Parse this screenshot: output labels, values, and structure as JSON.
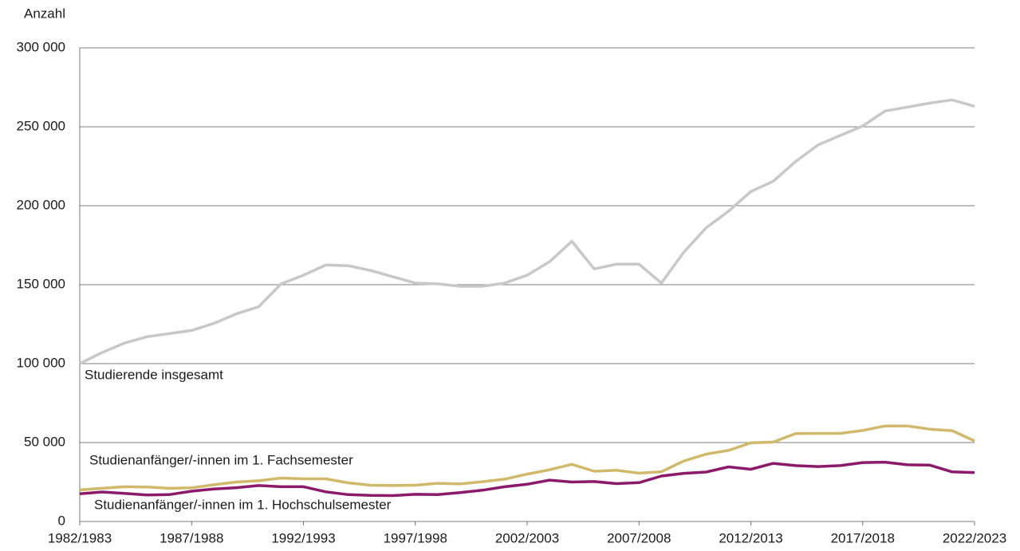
{
  "chart_data": {
    "type": "line",
    "y_label": "Anzahl",
    "categories": [
      "1982/1983",
      null,
      null,
      null,
      null,
      "1987/1988",
      null,
      null,
      null,
      null,
      "1992/1993",
      null,
      null,
      null,
      null,
      "1997/1998",
      null,
      null,
      null,
      null,
      "2002/2003",
      null,
      null,
      null,
      null,
      "2007/2008",
      null,
      null,
      null,
      null,
      "2012/2013",
      null,
      null,
      null,
      null,
      "2017/2018",
      null,
      null,
      null,
      null,
      "2022/2023"
    ],
    "series": [
      {
        "name": "Studierende insgesamt",
        "color": "#c8c8c8",
        "values": [
          100000,
          107000,
          113000,
          117000,
          119000,
          121000,
          125500,
          131500,
          136000,
          150500,
          156000,
          162500,
          162000,
          159000,
          155000,
          151000,
          150500,
          149000,
          149000,
          151000,
          156000,
          164500,
          177500,
          160000,
          163000,
          163000,
          151000,
          170500,
          186000,
          196500,
          209000,
          215500,
          228000,
          238500,
          244500,
          250500,
          260000,
          262500,
          265000,
          267000,
          263000
        ]
      },
      {
        "name": "Studienanfänger/-innen im 1. Fachsemester",
        "color": "#d1b96b",
        "values": [
          20000,
          21000,
          22000,
          21800,
          21000,
          21300,
          23300,
          25000,
          25800,
          27500,
          27000,
          27000,
          24500,
          23000,
          22800,
          23000,
          24200,
          23800,
          25200,
          26800,
          30000,
          32800,
          36200,
          31800,
          32400,
          30600,
          31500,
          38300,
          42700,
          45000,
          49800,
          50300,
          55700,
          55800,
          55800,
          57700,
          60500,
          60500,
          58500,
          57500,
          51000
        ]
      },
      {
        "name": "Studienanfänger/-innen im 1. Hochschulsemester",
        "color": "#8b1a6b",
        "values": [
          17600,
          18700,
          17800,
          16800,
          17000,
          19200,
          20600,
          21400,
          22800,
          22000,
          22000,
          18800,
          17000,
          16500,
          16400,
          17200,
          17000,
          18300,
          19800,
          22000,
          23600,
          26200,
          25000,
          25300,
          24000,
          24600,
          28800,
          30500,
          31300,
          34600,
          33100,
          36800,
          35400,
          34800,
          35400,
          37300,
          37600,
          35900,
          35700,
          31400,
          31000
        ]
      }
    ],
    "ylim": [
      0,
      300000
    ],
    "yticks": [
      0,
      {
        "value": 50000,
        "label": "50 000"
      },
      {
        "value": 100000,
        "label": "100 000"
      },
      {
        "value": 150000,
        "label": "150 000"
      },
      {
        "value": 200000,
        "label": "200 000"
      },
      {
        "value": 250000,
        "label": "250 000"
      },
      {
        "value": 300000,
        "label": "300 000"
      }
    ],
    "grid": true
  }
}
